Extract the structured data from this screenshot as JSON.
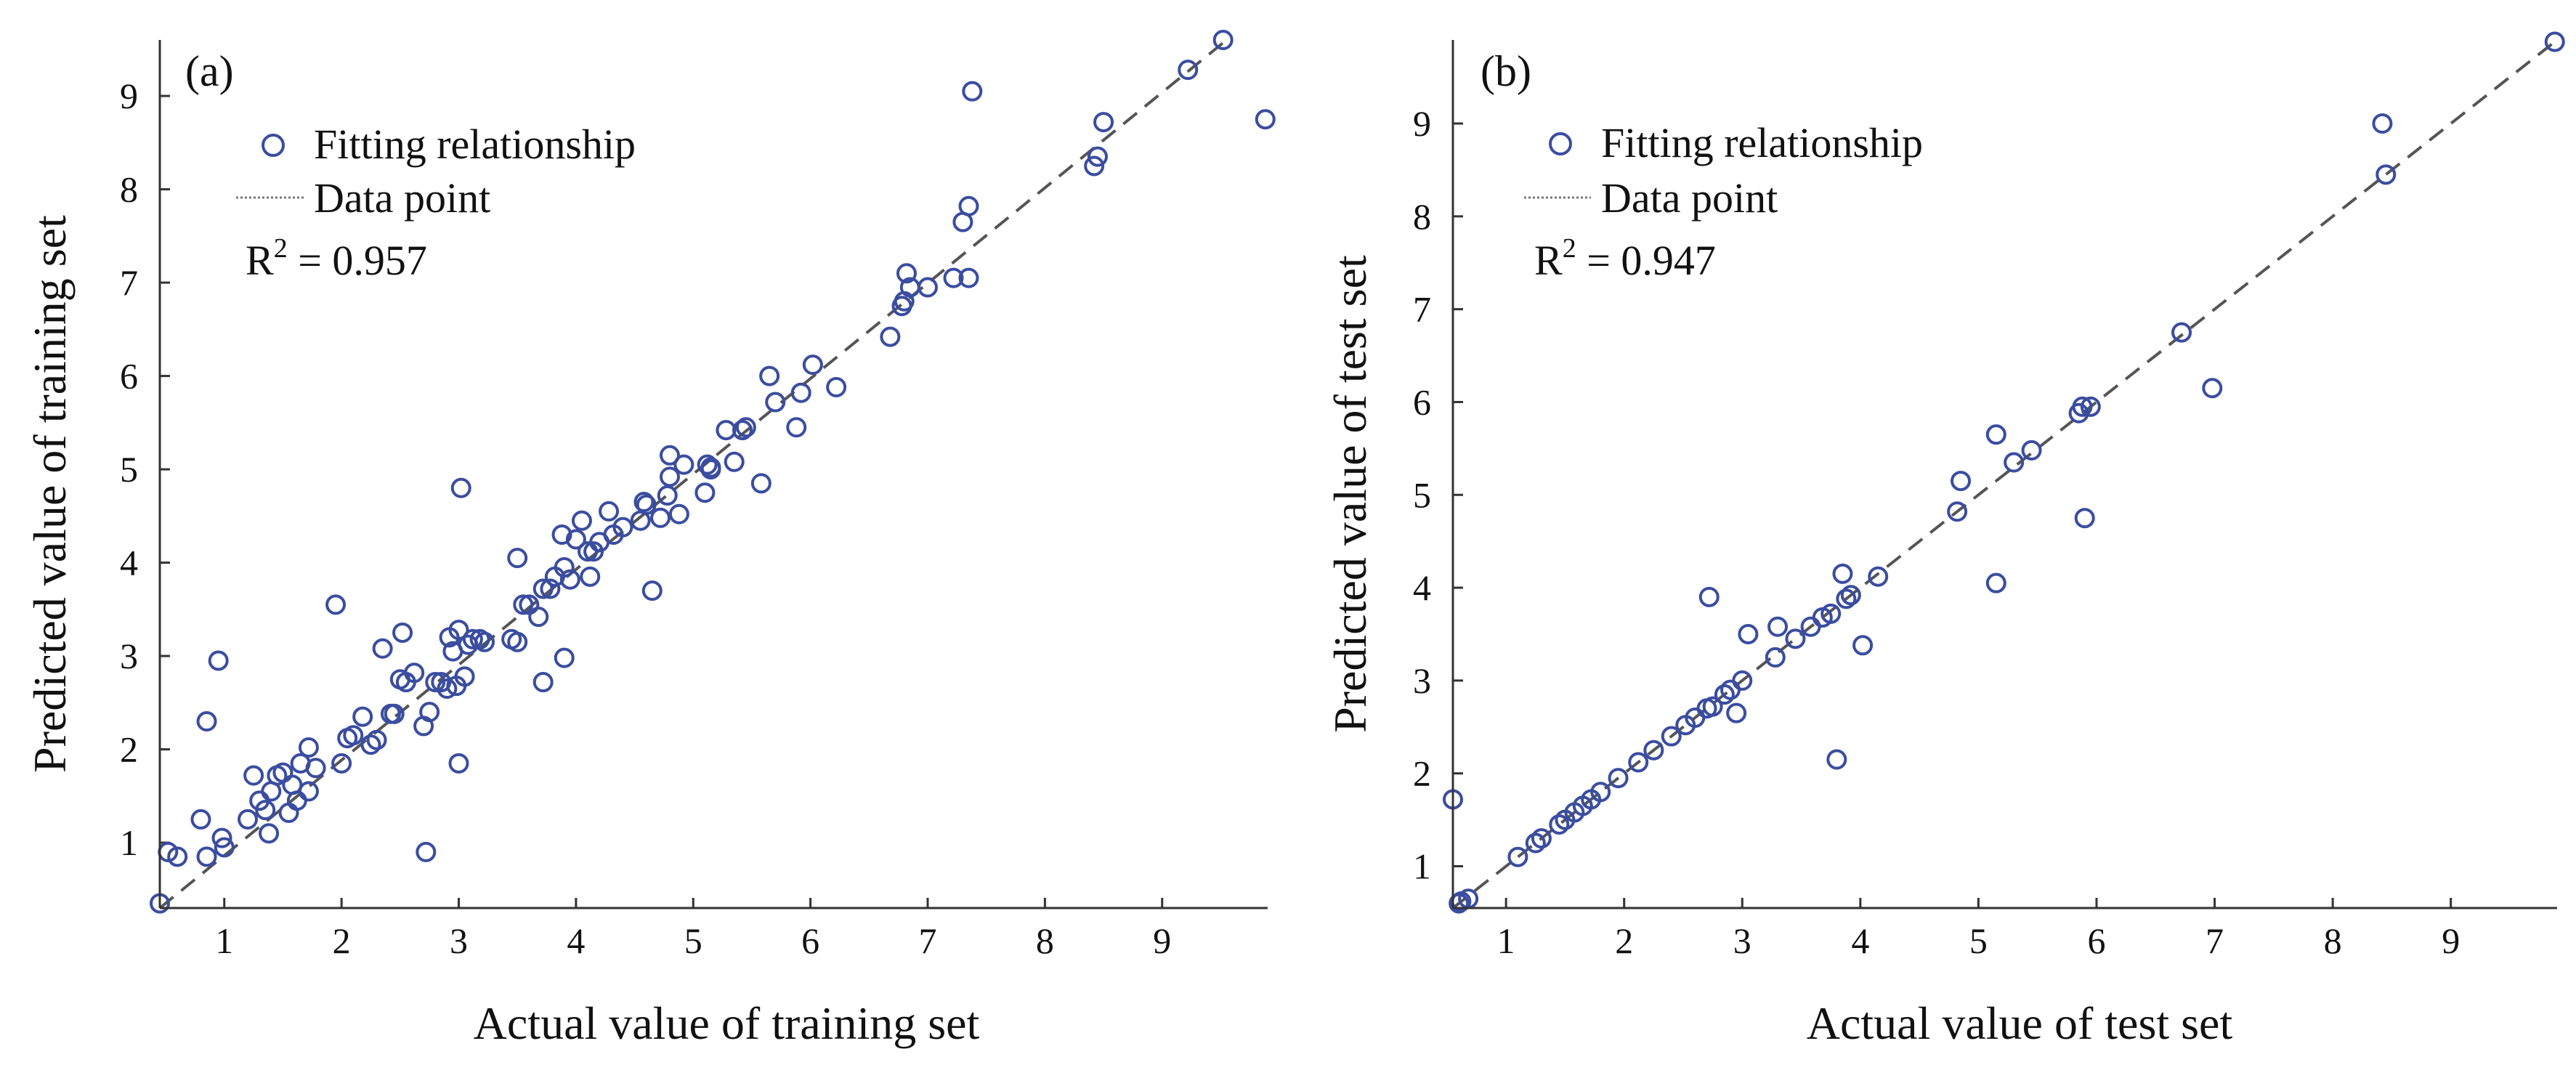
{
  "colors": {
    "marker": "#3a4da0",
    "fit_line": "#555555",
    "axis": "#333333"
  },
  "chart_data": [
    {
      "type": "scatter",
      "panel_label": "(a)",
      "xlabel": "Actual value of training set",
      "ylabel": "Predicted value of training set",
      "xlim": [
        0.45,
        9.9
      ],
      "ylim": [
        0.3,
        9.6
      ],
      "xticks": [
        1,
        2,
        3,
        4,
        5,
        6,
        7,
        8,
        9
      ],
      "yticks": [
        1,
        2,
        3,
        4,
        5,
        6,
        7,
        8,
        9
      ],
      "legend": {
        "marker_label": "Fitting relationship",
        "line_label": "Data point",
        "r2_prefix": "R",
        "r2_sup": "2",
        "r2_value": " = 0.957"
      },
      "fit_line": [
        [
          0.45,
          0.3
        ],
        [
          9.55,
          9.6
        ]
      ],
      "points": [
        [
          0.45,
          0.35
        ],
        [
          0.52,
          0.9
        ],
        [
          0.6,
          0.85
        ],
        [
          0.8,
          1.25
        ],
        [
          0.85,
          0.85
        ],
        [
          0.85,
          2.3
        ],
        [
          0.95,
          2.95
        ],
        [
          0.98,
          1.05
        ],
        [
          1.0,
          0.95
        ],
        [
          1.2,
          1.25
        ],
        [
          1.25,
          1.72
        ],
        [
          1.3,
          1.45
        ],
        [
          1.35,
          1.35
        ],
        [
          1.38,
          1.1
        ],
        [
          1.4,
          1.55
        ],
        [
          1.45,
          1.72
        ],
        [
          1.5,
          1.75
        ],
        [
          1.55,
          1.32
        ],
        [
          1.58,
          1.62
        ],
        [
          1.62,
          1.45
        ],
        [
          1.65,
          1.85
        ],
        [
          1.72,
          1.55
        ],
        [
          1.72,
          2.02
        ],
        [
          1.78,
          1.8
        ],
        [
          1.95,
          3.55
        ],
        [
          2.0,
          1.85
        ],
        [
          2.05,
          2.12
        ],
        [
          2.1,
          2.15
        ],
        [
          2.18,
          2.35
        ],
        [
          2.25,
          2.05
        ],
        [
          2.3,
          2.1
        ],
        [
          2.35,
          3.08
        ],
        [
          2.42,
          2.38
        ],
        [
          2.45,
          2.38
        ],
        [
          2.5,
          2.75
        ],
        [
          2.52,
          3.25
        ],
        [
          2.55,
          2.72
        ],
        [
          2.62,
          2.82
        ],
        [
          2.7,
          2.25
        ],
        [
          2.72,
          0.9
        ],
        [
          2.75,
          2.4
        ],
        [
          2.8,
          2.72
        ],
        [
          2.85,
          2.72
        ],
        [
          2.9,
          2.65
        ],
        [
          2.92,
          3.2
        ],
        [
          2.95,
          3.05
        ],
        [
          2.98,
          2.68
        ],
        [
          3.0,
          1.85
        ],
        [
          3.0,
          3.28
        ],
        [
          3.02,
          4.8
        ],
        [
          3.05,
          2.78
        ],
        [
          3.08,
          3.12
        ],
        [
          3.12,
          3.18
        ],
        [
          3.18,
          3.18
        ],
        [
          3.22,
          3.15
        ],
        [
          3.45,
          3.18
        ],
        [
          3.5,
          4.05
        ],
        [
          3.5,
          3.15
        ],
        [
          3.55,
          3.55
        ],
        [
          3.6,
          3.55
        ],
        [
          3.68,
          3.42
        ],
        [
          3.72,
          3.72
        ],
        [
          3.72,
          2.72
        ],
        [
          3.78,
          3.72
        ],
        [
          3.82,
          3.85
        ],
        [
          3.88,
          4.3
        ],
        [
          3.9,
          3.95
        ],
        [
          3.9,
          2.98
        ],
        [
          3.95,
          3.82
        ],
        [
          4.0,
          4.25
        ],
        [
          4.05,
          4.45
        ],
        [
          4.1,
          4.12
        ],
        [
          4.12,
          3.85
        ],
        [
          4.15,
          4.12
        ],
        [
          4.2,
          4.22
        ],
        [
          4.28,
          4.55
        ],
        [
          4.32,
          4.3
        ],
        [
          4.4,
          4.38
        ],
        [
          4.55,
          4.45
        ],
        [
          4.58,
          4.65
        ],
        [
          4.6,
          4.62
        ],
        [
          4.65,
          3.7
        ],
        [
          4.72,
          4.48
        ],
        [
          4.78,
          4.72
        ],
        [
          4.8,
          4.92
        ],
        [
          4.8,
          5.15
        ],
        [
          4.88,
          4.52
        ],
        [
          4.92,
          5.05
        ],
        [
          5.1,
          4.75
        ],
        [
          5.12,
          5.05
        ],
        [
          5.15,
          5.0
        ],
        [
          5.15,
          5.02
        ],
        [
          5.28,
          5.42
        ],
        [
          5.35,
          5.08
        ],
        [
          5.42,
          5.42
        ],
        [
          5.45,
          5.45
        ],
        [
          5.58,
          4.85
        ],
        [
          5.65,
          6.0
        ],
        [
          5.7,
          5.72
        ],
        [
          5.88,
          5.45
        ],
        [
          5.92,
          5.82
        ],
        [
          6.02,
          6.12
        ],
        [
          6.22,
          5.88
        ],
        [
          6.68,
          6.42
        ],
        [
          6.78,
          6.75
        ],
        [
          6.8,
          6.8
        ],
        [
          6.82,
          7.1
        ],
        [
          6.85,
          6.95
        ],
        [
          7.0,
          6.95
        ],
        [
          7.22,
          7.05
        ],
        [
          7.3,
          7.65
        ],
        [
          7.35,
          7.05
        ],
        [
          7.35,
          7.82
        ],
        [
          7.38,
          9.05
        ],
        [
          8.42,
          8.25
        ],
        [
          8.45,
          8.35
        ],
        [
          8.5,
          8.72
        ],
        [
          9.22,
          9.28
        ],
        [
          9.52,
          9.6
        ],
        [
          9.88,
          8.75
        ]
      ]
    },
    {
      "type": "scatter",
      "panel_label": "(b)",
      "xlabel": "Actual value of test set",
      "ylabel": "Predicted value of test set",
      "xlim": [
        0.55,
        9.9
      ],
      "ylim": [
        0.55,
        9.9
      ],
      "xticks": [
        1,
        2,
        3,
        4,
        5,
        6,
        7,
        8,
        9
      ],
      "yticks": [
        1,
        2,
        3,
        4,
        5,
        6,
        7,
        8,
        9
      ],
      "legend": {
        "marker_label": "Fitting relationship",
        "line_label": "Data point",
        "r2_prefix": "R",
        "r2_sup": "2",
        "r2_value": " = 0.947"
      },
      "fit_line": [
        [
          0.55,
          0.55
        ],
        [
          9.9,
          9.9
        ]
      ],
      "points": [
        [
          0.55,
          1.72
        ],
        [
          0.6,
          0.6
        ],
        [
          0.62,
          0.62
        ],
        [
          0.68,
          0.65
        ],
        [
          1.1,
          1.1
        ],
        [
          1.25,
          1.25
        ],
        [
          1.3,
          1.3
        ],
        [
          1.45,
          1.45
        ],
        [
          1.5,
          1.5
        ],
        [
          1.58,
          1.58
        ],
        [
          1.65,
          1.65
        ],
        [
          1.72,
          1.72
        ],
        [
          1.8,
          1.8
        ],
        [
          1.95,
          1.95
        ],
        [
          2.12,
          2.12
        ],
        [
          2.25,
          2.25
        ],
        [
          2.4,
          2.4
        ],
        [
          2.52,
          2.52
        ],
        [
          2.6,
          2.6
        ],
        [
          2.7,
          2.7
        ],
        [
          2.72,
          3.9
        ],
        [
          2.75,
          2.72
        ],
        [
          2.85,
          2.85
        ],
        [
          2.9,
          2.9
        ],
        [
          2.95,
          2.65
        ],
        [
          3.0,
          3.0
        ],
        [
          3.05,
          3.5
        ],
        [
          3.28,
          3.25
        ],
        [
          3.3,
          3.58
        ],
        [
          3.45,
          3.45
        ],
        [
          3.58,
          3.58
        ],
        [
          3.68,
          3.68
        ],
        [
          3.75,
          3.72
        ],
        [
          3.8,
          2.15
        ],
        [
          3.85,
          4.15
        ],
        [
          3.88,
          3.88
        ],
        [
          3.92,
          3.92
        ],
        [
          4.02,
          3.38
        ],
        [
          4.15,
          4.12
        ],
        [
          4.82,
          4.82
        ],
        [
          4.85,
          5.15
        ],
        [
          5.15,
          4.05
        ],
        [
          5.15,
          5.65
        ],
        [
          5.3,
          5.35
        ],
        [
          5.45,
          5.48
        ],
        [
          5.85,
          5.88
        ],
        [
          5.88,
          5.95
        ],
        [
          5.9,
          4.75
        ],
        [
          5.95,
          5.95
        ],
        [
          6.72,
          6.75
        ],
        [
          6.98,
          6.15
        ],
        [
          8.42,
          9.0
        ],
        [
          8.45,
          8.45
        ],
        [
          9.88,
          9.88
        ]
      ]
    }
  ]
}
